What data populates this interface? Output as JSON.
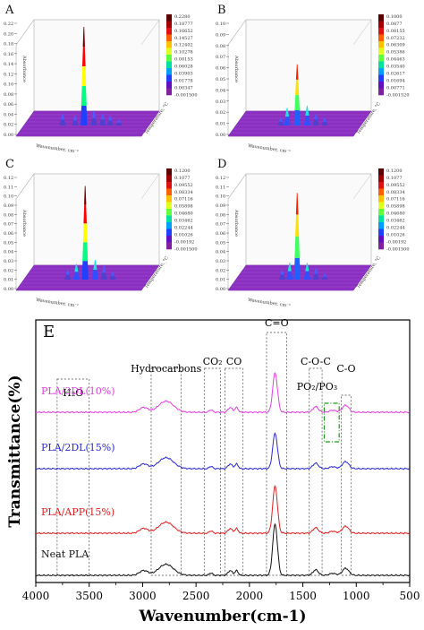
{
  "panels3d": [
    {
      "letter": "A",
      "z_ticks": [
        "0.22",
        "0.20",
        "0.18",
        "0.16",
        "0.14",
        "0.12",
        "0.10",
        "0.08",
        "0.06",
        "0.04",
        "0.02",
        "0.00"
      ],
      "ylabel": "Absorbance",
      "xlabel": "Wavenumber, cm⁻¹",
      "tlabel": "Temperature, °C",
      "colorbar": [
        "0.2280",
        "0.18777",
        "0.16652",
        "0.14527",
        "0.12402",
        "0.10278",
        "0.08153",
        "0.06028",
        "0.03903",
        "0.01778",
        "0.00347",
        "-0.001500"
      ]
    },
    {
      "letter": "B",
      "z_ticks": [
        "0.10",
        "0.09",
        "0.08",
        "0.07",
        "0.06",
        "0.05",
        "0.04",
        "0.03",
        "0.02",
        "0.01",
        "0.00"
      ],
      "ylabel": "Absorbance",
      "xlabel": "Wavenumber, cm⁻¹",
      "tlabel": "Temperature, °C",
      "colorbar": [
        "0.1000",
        "0.0877",
        "0.08155",
        "0.07232",
        "0.06309",
        "0.05386",
        "0.04463",
        "0.03540",
        "0.02617",
        "0.01694",
        "0.00771",
        "-0.001520"
      ]
    },
    {
      "letter": "C",
      "z_ticks": [
        "0.12",
        "0.11",
        "0.10",
        "0.09",
        "0.08",
        "0.07",
        "0.06",
        "0.05",
        "0.04",
        "0.03",
        "0.02",
        "0.01",
        "0.00"
      ],
      "ylabel": "Absorbance",
      "xlabel": "Wavenumber, cm⁻¹",
      "tlabel": "Temperature, °C",
      "colorbar": [
        "0.1200",
        "0.1077",
        "0.09552",
        "0.08334",
        "0.07116",
        "0.05898",
        "0.04680",
        "0.03462",
        "0.02244",
        "0.01026",
        "-0.00192",
        "-0.001500"
      ]
    },
    {
      "letter": "D",
      "z_ticks": [
        "0.12",
        "0.11",
        "0.10",
        "0.09",
        "0.08",
        "0.07",
        "0.06",
        "0.05",
        "0.04",
        "0.03",
        "0.02",
        "0.01",
        "0.00"
      ],
      "ylabel": "Absorbance",
      "xlabel": "Wavenumber, cm⁻¹",
      "tlabel": "Temperature, °C",
      "colorbar": [
        "0.1200",
        "0.1077",
        "0.09552",
        "0.08334",
        "0.07116",
        "0.05898",
        "0.04680",
        "0.03462",
        "0.02244",
        "0.01026",
        "-0.00192",
        "-0.001500"
      ]
    }
  ],
  "chart_data": {
    "type": "line",
    "panel_letter": "E",
    "xlabel": "Wavenumber(cm-1)",
    "ylabel": "Transmittance(%)",
    "xlim": [
      4000,
      500
    ],
    "x_ticks": [
      "4000",
      "3500",
      "3000",
      "2500",
      "2000",
      "1500",
      "1000",
      "500"
    ],
    "series": [
      {
        "name": "PLA/3DL(10%)",
        "color": "#e040e0",
        "offset": 3,
        "peak": 1.0
      },
      {
        "name": "PLA/2DL(15%)",
        "color": "#2a2ad0",
        "offset": 2,
        "peak": 0.9
      },
      {
        "name": "PLA/APP(15%)",
        "color": "#e02020",
        "offset": 1,
        "peak": 1.2
      },
      {
        "name": "Neat PLA",
        "color": "#111111",
        "offset": 0,
        "peak": 1.3
      }
    ],
    "annotations": [
      {
        "label": "H₂O",
        "from": 3800,
        "to": 3500
      },
      {
        "label": "Hydrocarbons",
        "from": 2920,
        "to": 2640
      },
      {
        "label": "CO₂",
        "from": 2420,
        "to": 2270
      },
      {
        "label": "CO",
        "from": 2230,
        "to": 2060
      },
      {
        "label": "C=O",
        "from": 1840,
        "to": 1650
      },
      {
        "label": "C-O-C",
        "from": 1440,
        "to": 1320
      },
      {
        "label": "PO₂/PO₃",
        "from": 1300,
        "to": 1160
      },
      {
        "label": "C-O",
        "from": 1140,
        "to": 1050
      }
    ]
  }
}
